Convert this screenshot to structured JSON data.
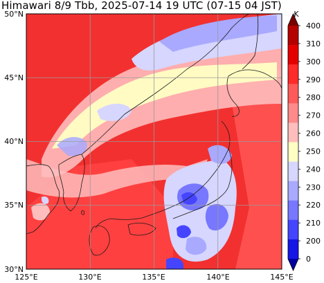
{
  "title": "Himawari 8/9 Tbb, 2025-07-14 19 UTC (07-15 04 JST)",
  "map": {
    "lon_range": [
      125,
      145
    ],
    "lat_range": [
      30,
      50
    ],
    "lon_ticks": [
      "125°E",
      "130°E",
      "135°E",
      "140°E",
      "145°E"
    ],
    "lat_ticks": [
      "50°N",
      "45°N",
      "40°N",
      "35°N",
      "30°N"
    ],
    "grid": true
  },
  "colorbar": {
    "unit": "K",
    "labels": [
      "400",
      "310",
      "300",
      "290",
      "280",
      "270",
      "260",
      "250",
      "240",
      "230",
      "220",
      "210",
      "200",
      "0"
    ],
    "colors": [
      "#7a0000",
      "#b50000",
      "#e50000",
      "#ff2a2a",
      "#ff5a5a",
      "#ff8a8a",
      "#ffbdbd",
      "#ffffc4",
      "#d6d6ff",
      "#a9a9ff",
      "#7777ff",
      "#4545ff",
      "#1616e6",
      "#0000a0"
    ]
  }
}
